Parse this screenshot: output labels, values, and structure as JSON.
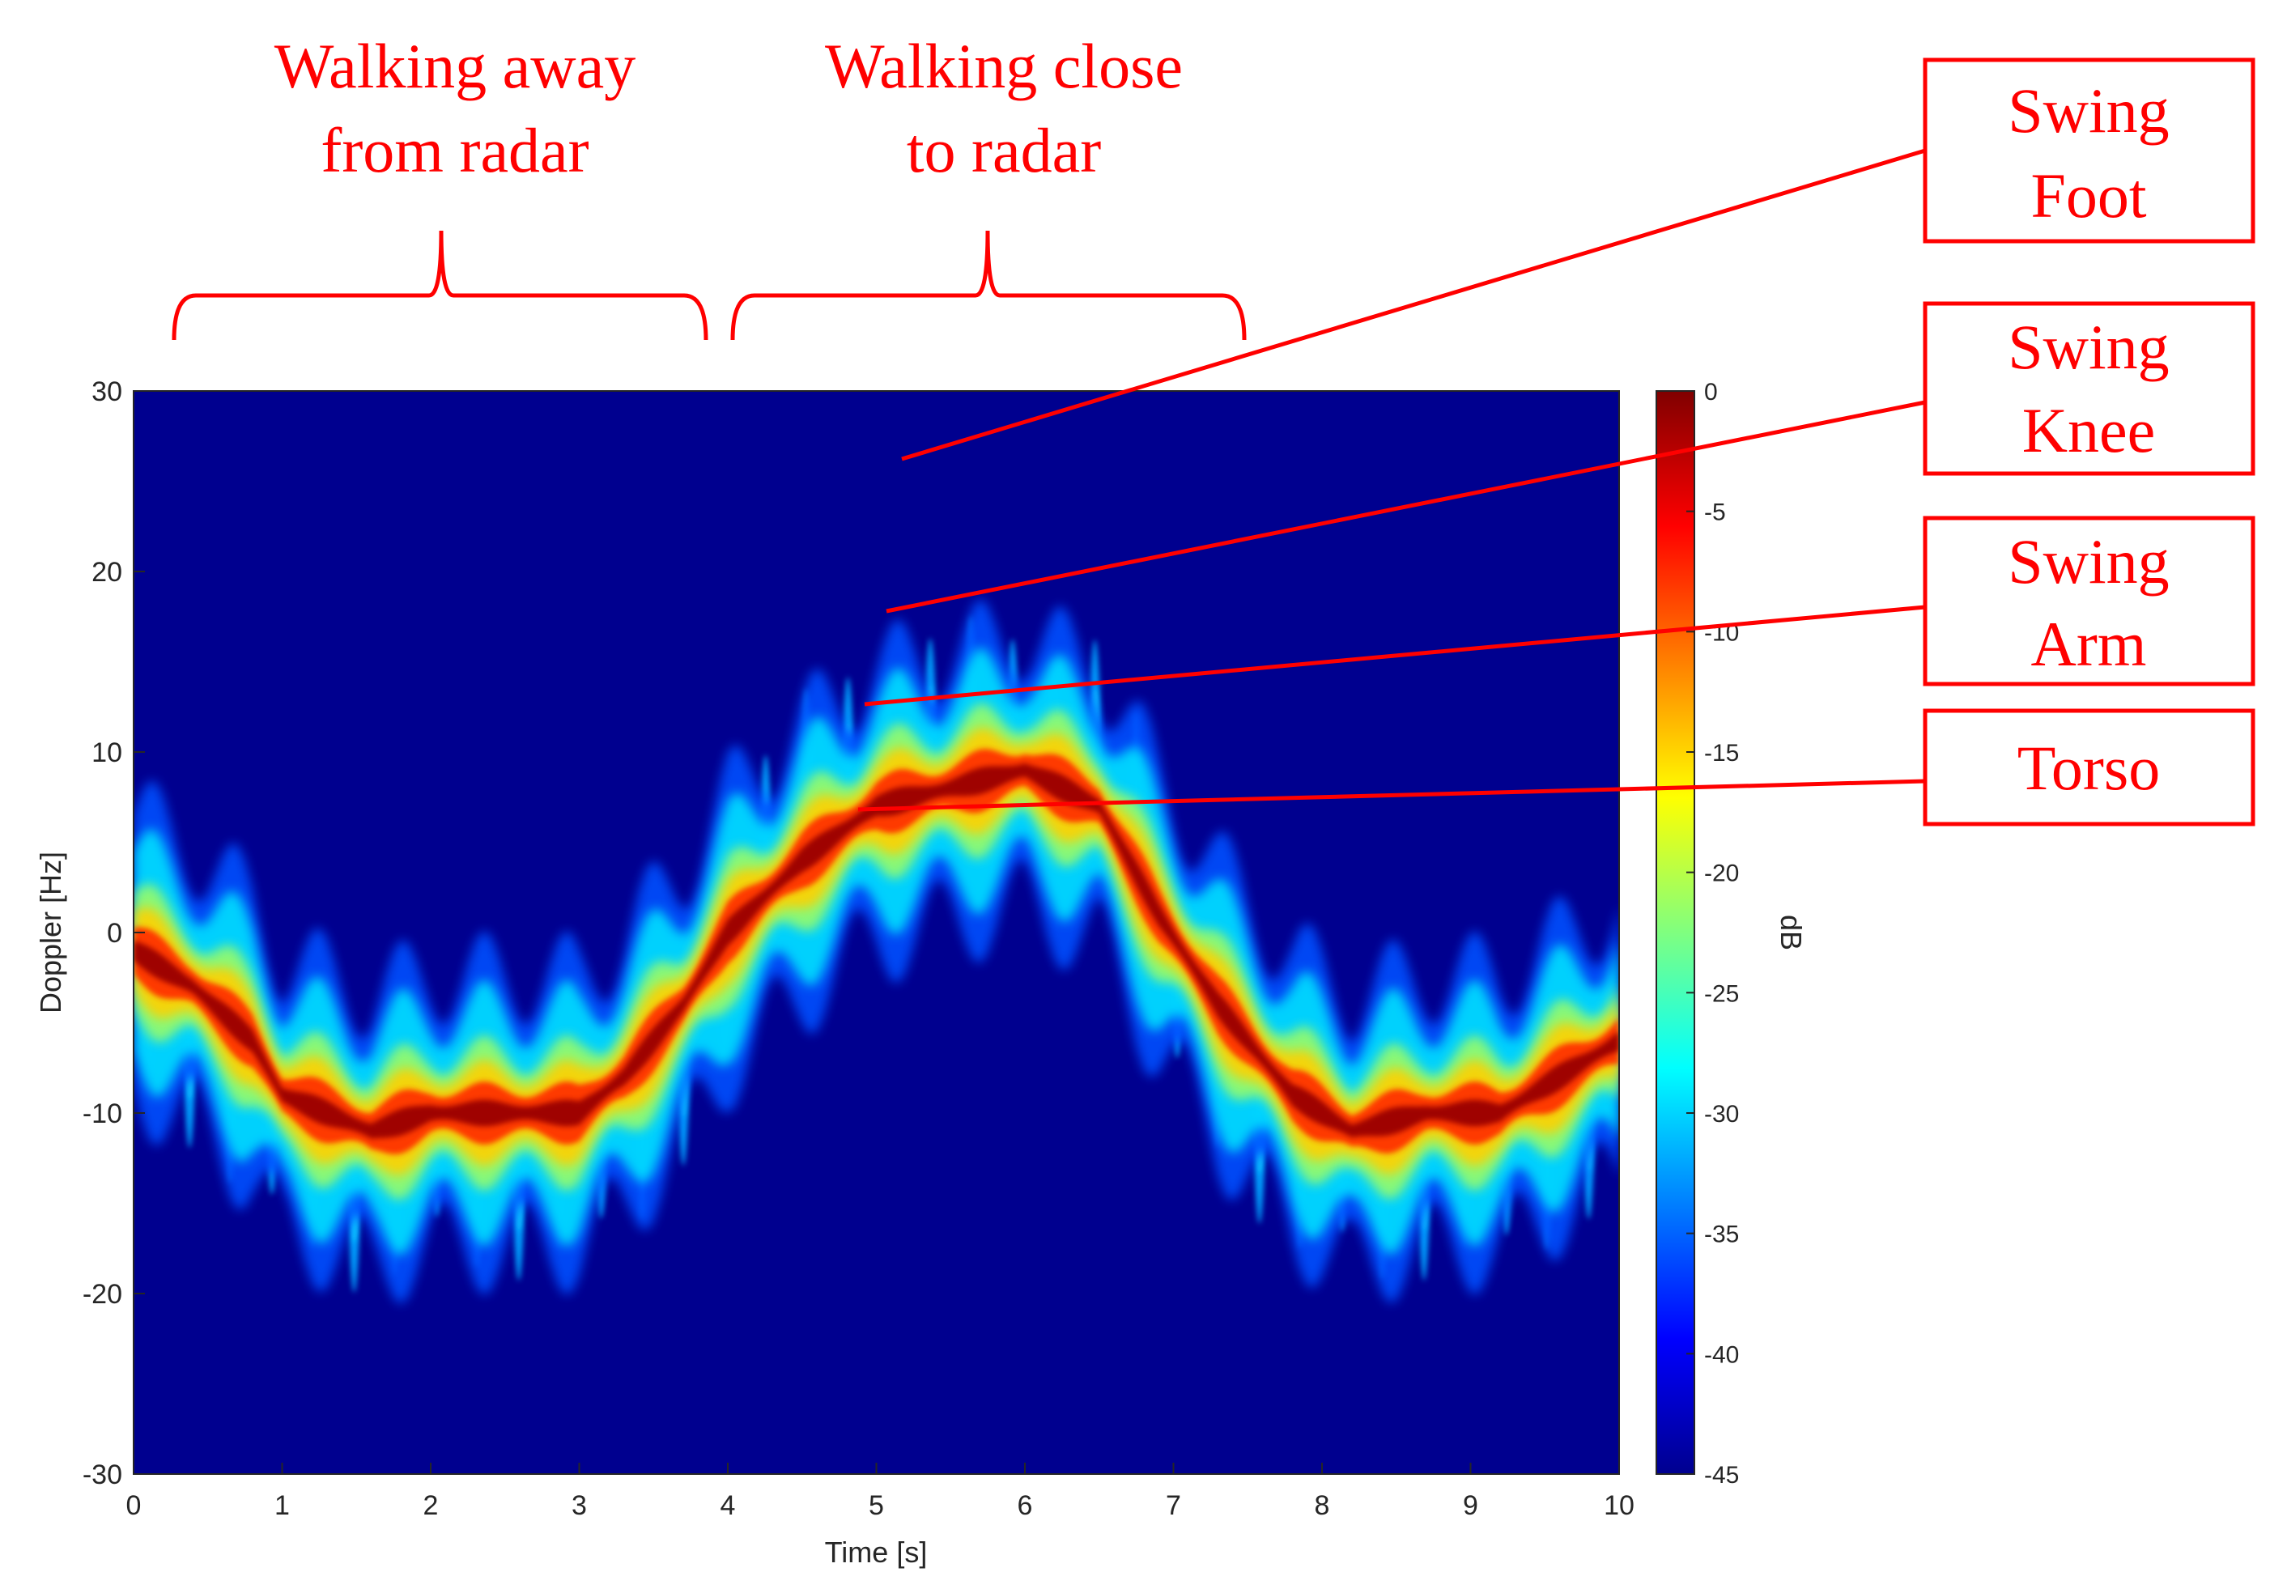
{
  "chart_data": {
    "type": "heatmap",
    "title": "",
    "xlabel": "Time [s]",
    "ylabel": "Doppler [Hz]",
    "xlim": [
      0,
      10
    ],
    "ylim": [
      -30,
      30
    ],
    "xticks": [
      "0",
      "1",
      "2",
      "3",
      "4",
      "5",
      "6",
      "7",
      "8",
      "9",
      "10"
    ],
    "yticks": [
      "30",
      "20",
      "10",
      "0",
      "-10",
      "-20",
      "-30"
    ],
    "colorbar": {
      "label": "dB",
      "range": [
        -45,
        0
      ],
      "ticks": [
        "0",
        "-5",
        "-10",
        "-15",
        "-20",
        "-25",
        "-30",
        "-35",
        "-40",
        "-45"
      ],
      "colormap": "jet"
    },
    "torso_track": [
      {
        "t": 0.0,
        "hz": -1
      },
      {
        "t": 0.4,
        "hz": -3
      },
      {
        "t": 0.8,
        "hz": -6
      },
      {
        "t": 1.0,
        "hz": -9
      },
      {
        "t": 1.3,
        "hz": -10
      },
      {
        "t": 1.6,
        "hz": -11
      },
      {
        "t": 2.0,
        "hz": -10
      },
      {
        "t": 2.5,
        "hz": -10
      },
      {
        "t": 3.0,
        "hz": -10
      },
      {
        "t": 3.3,
        "hz": -8
      },
      {
        "t": 3.7,
        "hz": -4
      },
      {
        "t": 4.0,
        "hz": 0
      },
      {
        "t": 4.5,
        "hz": 4
      },
      {
        "t": 5.0,
        "hz": 7
      },
      {
        "t": 5.5,
        "hz": 8
      },
      {
        "t": 6.0,
        "hz": 9
      },
      {
        "t": 6.5,
        "hz": 7
      },
      {
        "t": 6.9,
        "hz": 1
      },
      {
        "t": 7.3,
        "hz": -4
      },
      {
        "t": 7.8,
        "hz": -9
      },
      {
        "t": 8.2,
        "hz": -11
      },
      {
        "t": 8.7,
        "hz": -10
      },
      {
        "t": 9.2,
        "hz": -10
      },
      {
        "t": 9.6,
        "hz": -8
      },
      {
        "t": 10.0,
        "hz": -6
      }
    ],
    "regions": [
      {
        "label": "Walking away from radar",
        "t_start": 0.3,
        "t_end": 3.9
      },
      {
        "label": "Walking close to radar",
        "t_start": 4.0,
        "t_end": 7.5
      }
    ],
    "annotations": [
      {
        "label": "Swing Foot",
        "t": 5.15,
        "hz": 26.5
      },
      {
        "label": "Swing Knee",
        "t": 5.05,
        "hz": 17.5
      },
      {
        "label": "Swing Arm",
        "t": 4.95,
        "hz": 12.5
      },
      {
        "label": "Torso",
        "t": 4.9,
        "hz": 6.5
      }
    ]
  },
  "labels": {
    "region1_line1": "Walking away",
    "region1_line2": "from radar",
    "region2_line1": "Walking close",
    "region2_line2": "to radar",
    "foot_line1": "Swing",
    "foot_line2": "Foot",
    "knee_line1": "Swing",
    "knee_line2": "Knee",
    "arm_line1": "Swing",
    "arm_line2": "Arm",
    "torso": "Torso"
  },
  "colors": {
    "annotation": "#ff0000",
    "background": "#00008f"
  }
}
